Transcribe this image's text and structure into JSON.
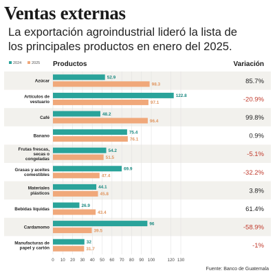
{
  "title": "Ventas externas",
  "subtitle_lines": [
    "La exportación agroindustrial lideró la lista de",
    "los principales productos en enero del 2025."
  ],
  "chart_data": {
    "type": "bar",
    "orientation": "horizontal",
    "column_headers": {
      "products": "Productos",
      "variation": "Variación"
    },
    "categories": [
      "Azúcar",
      "Artículos de vestuario",
      "Café",
      "Banano",
      "Frutas frescas, secas o congeladas",
      "Grasas y aceites comestibles",
      "Materiales plásticos",
      "Bebidas líquidas",
      "Cardamomo",
      "Manufacturas de papel y cartón"
    ],
    "category_display_lines": [
      [
        "Azúcar"
      ],
      [
        "Artículos de",
        "vestuario"
      ],
      [
        "Café"
      ],
      [
        "Banano"
      ],
      [
        "Frutas frescas,",
        "secas o",
        "congeladas"
      ],
      [
        "Grasas y aceites",
        "comestibles"
      ],
      [
        "Materiales",
        "plásticos"
      ],
      [
        "Bebidas líquidas"
      ],
      [
        "Cardamomo"
      ],
      [
        "Manufacturas de",
        "papel y cartón"
      ]
    ],
    "series": [
      {
        "name": "2024",
        "color": "#2aa39a",
        "label_color": "#1d8a82",
        "values": [
          52.9,
          122.8,
          48.2,
          75.4,
          54.2,
          69.9,
          44.1,
          26.9,
          96,
          32
        ]
      },
      {
        "name": "2025",
        "color": "#f0a87a",
        "label_color": "#e0955f",
        "values": [
          98.3,
          97.1,
          96.4,
          76.1,
          51.5,
          47.4,
          45.8,
          43.4,
          39.5,
          31.7
        ]
      }
    ],
    "variation": [
      "85.7%",
      "-20.9%",
      "99.8%",
      "0.9%",
      "-5.1%",
      "-32.2%",
      "3.8%",
      "61.4%",
      "-58.9%",
      "-1%"
    ],
    "variation_colors": {
      "positive": "#222222",
      "negative": "#c0392b"
    },
    "xlim": [
      0,
      130
    ],
    "x_ticks": [
      0,
      10,
      20,
      30,
      40,
      50,
      60,
      70,
      80,
      90,
      100,
      120,
      130
    ],
    "grid": true,
    "legend_placement": "top-left",
    "source": "Fuente: Banco de Guatemala"
  }
}
